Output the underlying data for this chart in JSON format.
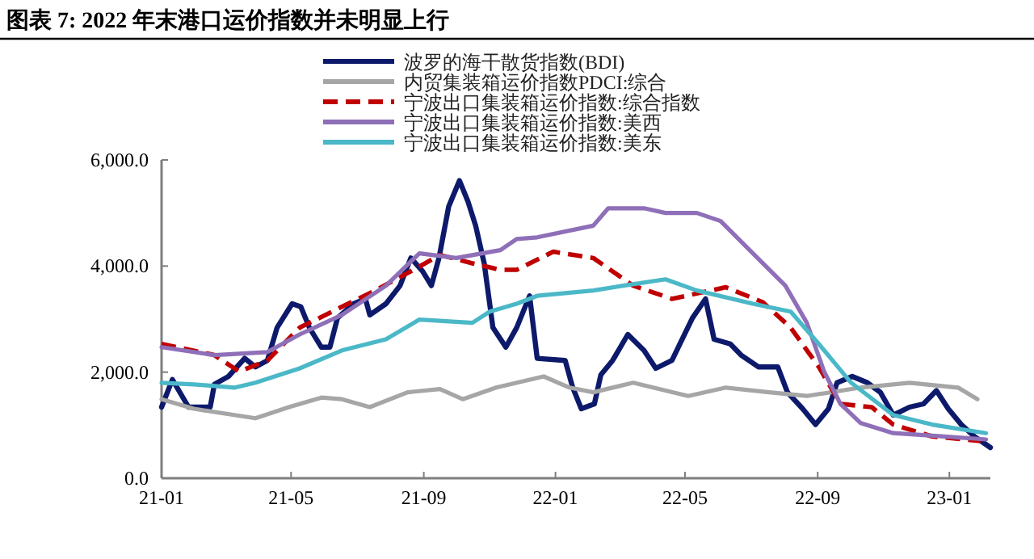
{
  "chart_data": {
    "type": "line",
    "title": "图表 7:  2022 年末港口运价指数并未明显上行",
    "xlim": [
      "2021-01-01",
      "2023-02-08"
    ],
    "ylim": [
      0,
      6000
    ],
    "xticks": [
      {
        "value": "2021-01",
        "label": "21-01"
      },
      {
        "value": "2021-05",
        "label": "21-05"
      },
      {
        "value": "2021-09",
        "label": "21-09"
      },
      {
        "value": "2022-01",
        "label": "22-01"
      },
      {
        "value": "2022-05",
        "label": "22-05"
      },
      {
        "value": "2022-09",
        "label": "22-09"
      },
      {
        "value": "2023-01",
        "label": "23-01"
      }
    ],
    "yticks": [
      {
        "value": 0,
        "label": "0.0"
      },
      {
        "value": 2000,
        "label": "2,000.0"
      },
      {
        "value": 4000,
        "label": "4,000.0"
      },
      {
        "value": 6000,
        "label": "6,000.0"
      }
    ],
    "grid": false,
    "legend": "top",
    "line_style": "solid",
    "marker": "none",
    "series": [
      {
        "name": "波罗的海干散货指数(BDI)",
        "color": "#0d1a6b",
        "x": [
          "2021-01-01",
          "2021-01-11",
          "2021-01-26",
          "2021-02-15",
          "2021-02-19",
          "2021-03-04",
          "2021-03-19",
          "2021-03-29",
          "2021-04-09",
          "2021-04-18",
          "2021-05-02",
          "2021-05-10",
          "2021-05-18",
          "2021-05-29",
          "2021-06-06",
          "2021-06-13",
          "2021-06-28",
          "2021-07-09",
          "2021-07-13",
          "2021-07-28",
          "2021-08-10",
          "2021-08-20",
          "2021-08-31",
          "2021-09-08",
          "2021-09-15",
          "2021-09-24",
          "2021-10-04",
          "2021-10-12",
          "2021-10-19",
          "2021-10-27",
          "2021-11-04",
          "2021-11-16",
          "2021-11-26",
          "2021-12-08",
          "2021-12-15",
          "2022-01-10",
          "2022-01-17",
          "2022-01-25",
          "2022-02-06",
          "2022-02-12",
          "2022-02-23",
          "2022-03-09",
          "2022-03-24",
          "2022-04-04",
          "2022-04-19",
          "2022-05-08",
          "2022-05-20",
          "2022-05-28",
          "2022-06-12",
          "2022-06-22",
          "2022-07-08",
          "2022-07-26",
          "2022-08-04",
          "2022-08-18",
          "2022-08-30",
          "2022-09-11",
          "2022-09-19",
          "2022-10-03",
          "2022-10-17",
          "2022-10-29",
          "2022-11-10",
          "2022-11-25",
          "2022-12-08",
          "2022-12-20",
          "2022-12-31",
          "2023-01-12",
          "2023-01-24",
          "2023-02-08"
        ],
        "values": [
          1340,
          1860,
          1340,
          1340,
          1770,
          1920,
          2260,
          2100,
          2220,
          2840,
          3290,
          3230,
          2840,
          2470,
          2470,
          3020,
          3290,
          3380,
          3080,
          3290,
          3630,
          4150,
          3900,
          3630,
          4150,
          5120,
          5610,
          5210,
          4760,
          4050,
          2840,
          2470,
          2840,
          3440,
          2260,
          2220,
          1710,
          1310,
          1400,
          1950,
          2220,
          2710,
          2410,
          2070,
          2220,
          3020,
          3380,
          2620,
          2530,
          2320,
          2100,
          2100,
          1620,
          1310,
          1010,
          1310,
          1800,
          1920,
          1800,
          1620,
          1190,
          1340,
          1400,
          1650,
          1310,
          1010,
          790,
          580
        ]
      },
      {
        "name": "内贸集装箱运价指数PDCI:综合",
        "color": "#a6a6a6",
        "x": [
          "2021-01-01",
          "2021-01-31",
          "2021-02-19",
          "2021-03-29",
          "2021-04-29",
          "2021-05-29",
          "2021-06-17",
          "2021-07-13",
          "2021-08-17",
          "2021-09-16",
          "2021-10-07",
          "2021-11-07",
          "2021-12-21",
          "2022-01-14",
          "2022-02-05",
          "2022-03-14",
          "2022-05-04",
          "2022-06-08",
          "2022-07-18",
          "2022-08-22",
          "2022-10-11",
          "2022-11-25",
          "2023-01-09",
          "2023-01-27"
        ],
        "values": [
          1490,
          1310,
          1250,
          1130,
          1340,
          1520,
          1490,
          1340,
          1620,
          1680,
          1490,
          1710,
          1920,
          1710,
          1620,
          1800,
          1550,
          1710,
          1620,
          1550,
          1710,
          1800,
          1710,
          1490
        ]
      },
      {
        "name": "宁波出口集装箱运价指数:综合指数",
        "color": "#c00000",
        "line_style": "dashed",
        "x": [
          "2021-01-01",
          "2021-02-19",
          "2021-03-14",
          "2021-04-09",
          "2021-05-09",
          "2021-06-17",
          "2021-07-18",
          "2021-08-28",
          "2021-09-16",
          "2021-10-16",
          "2021-11-11",
          "2021-11-26",
          "2021-12-30",
          "2022-02-05",
          "2022-03-14",
          "2022-04-19",
          "2022-06-08",
          "2022-07-12",
          "2022-08-07",
          "2022-09-02",
          "2022-09-22",
          "2022-10-21",
          "2022-11-10",
          "2022-12-16",
          "2023-01-30"
        ],
        "values": [
          2530,
          2320,
          2010,
          2220,
          2840,
          3230,
          3540,
          3990,
          4210,
          4050,
          3930,
          3930,
          4270,
          4150,
          3630,
          3380,
          3600,
          3320,
          2840,
          2100,
          1400,
          1340,
          1010,
          790,
          700
        ]
      },
      {
        "name": "宁波出口集装箱运价指数:美西",
        "color": "#8e6fb8",
        "x": [
          "2021-01-01",
          "2021-02-19",
          "2021-04-09",
          "2021-05-09",
          "2021-06-17",
          "2021-07-28",
          "2021-08-28",
          "2021-10-01",
          "2021-11-11",
          "2021-11-26",
          "2021-12-15",
          "2022-02-05",
          "2022-02-19",
          "2022-03-24",
          "2022-04-13",
          "2022-05-12",
          "2022-06-03",
          "2022-07-03",
          "2022-08-02",
          "2022-08-22",
          "2022-09-07",
          "2022-09-22",
          "2022-10-11",
          "2022-11-10",
          "2022-12-25",
          "2023-02-04"
        ],
        "values": [
          2470,
          2320,
          2380,
          2710,
          3080,
          3630,
          4240,
          4150,
          4300,
          4510,
          4540,
          4760,
          5090,
          5090,
          5000,
          5000,
          4850,
          4240,
          3630,
          2930,
          2010,
          1400,
          1040,
          850,
          790,
          730
        ]
      },
      {
        "name": "宁波出口集装箱运价指数:美东",
        "color": "#4bb8c8",
        "x": [
          "2021-01-01",
          "2021-01-31",
          "2021-03-10",
          "2021-03-29",
          "2021-05-09",
          "2021-06-17",
          "2021-07-28",
          "2021-08-28",
          "2021-10-16",
          "2021-11-01",
          "2021-11-26",
          "2021-12-15",
          "2022-02-05",
          "2022-03-05",
          "2022-04-13",
          "2022-05-12",
          "2022-07-03",
          "2022-08-07",
          "2022-09-02",
          "2022-10-02",
          "2022-11-10",
          "2022-12-16",
          "2023-02-04"
        ],
        "values": [
          1800,
          1770,
          1710,
          1800,
          2070,
          2410,
          2620,
          2990,
          2930,
          3140,
          3290,
          3440,
          3540,
          3630,
          3750,
          3540,
          3290,
          3140,
          2530,
          1800,
          1190,
          1010,
          850
        ]
      }
    ]
  }
}
